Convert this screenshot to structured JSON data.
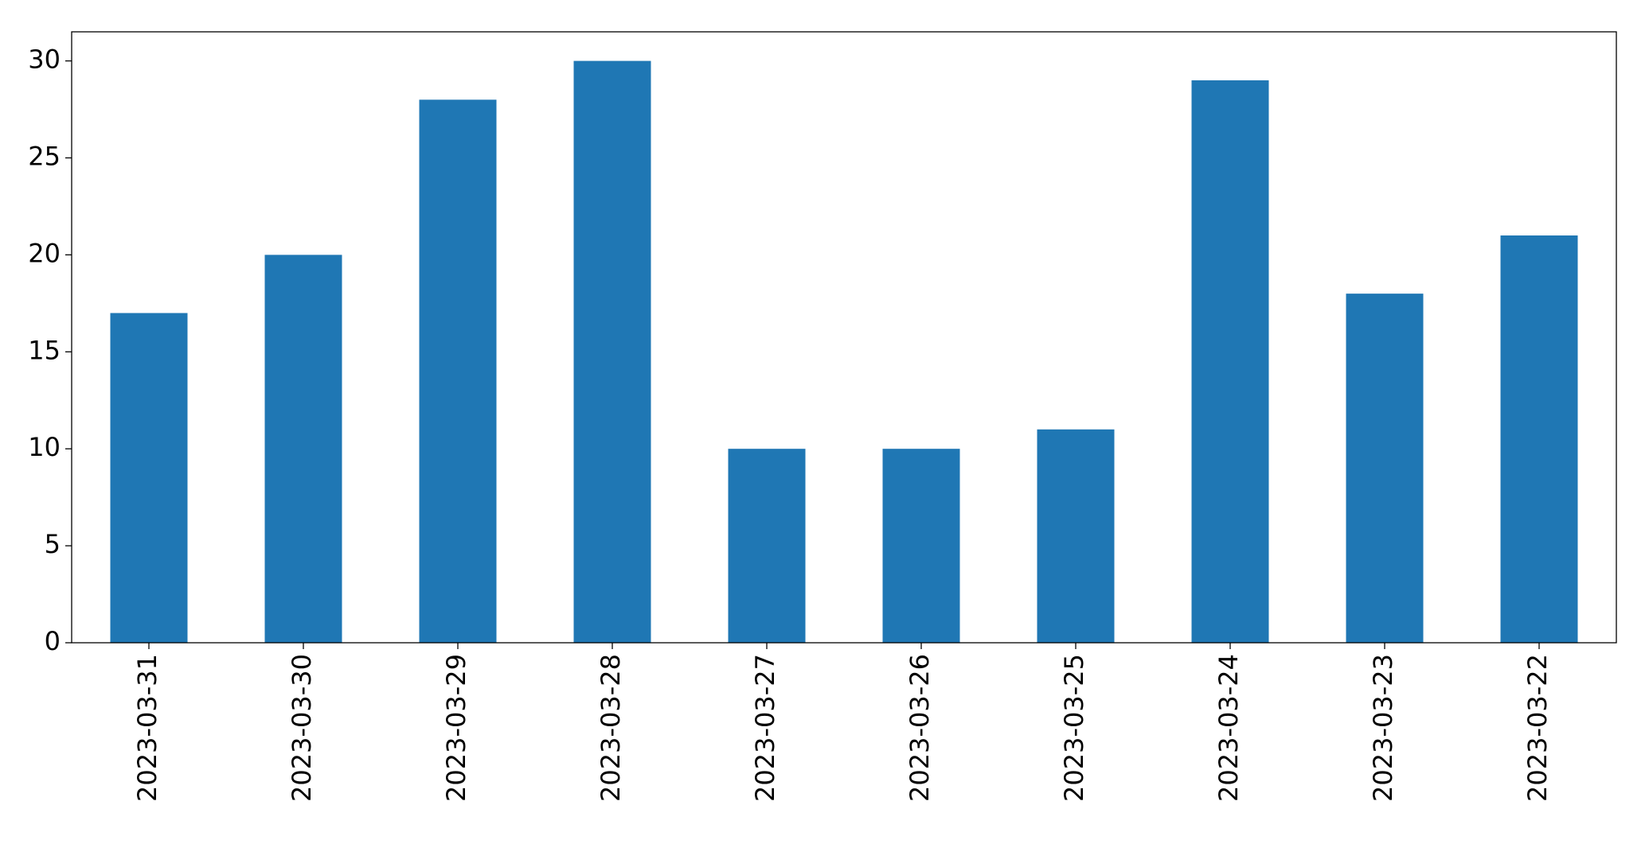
{
  "chart_data": {
    "type": "bar",
    "categories": [
      "2023-03-31",
      "2023-03-30",
      "2023-03-29",
      "2023-03-28",
      "2023-03-27",
      "2023-03-26",
      "2023-03-25",
      "2023-03-24",
      "2023-03-23",
      "2023-03-22"
    ],
    "values": [
      17,
      20,
      28,
      30,
      10,
      10,
      11,
      29,
      18,
      21
    ],
    "color": "#1f77b4",
    "ylim": [
      0,
      31.5
    ],
    "yticks": [
      0,
      5,
      10,
      15,
      20,
      25,
      30
    ],
    "grid": false
  }
}
